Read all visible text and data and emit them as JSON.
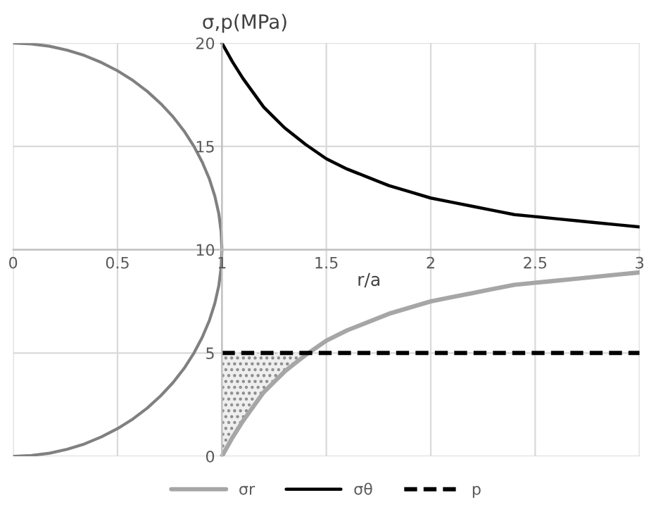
{
  "chart_data": {
    "type": "line",
    "xlabel": "r/a",
    "ylabel": "σ,p(MPa)",
    "xlim": [
      0,
      3
    ],
    "ylim": [
      0,
      20
    ],
    "xticks": [
      0,
      0.5,
      1,
      1.5,
      2,
      2.5,
      3
    ],
    "yticks": [
      0,
      5,
      10,
      15,
      20
    ],
    "grid": true,
    "legend": "bottom",
    "series": [
      {
        "name": "σr",
        "color": "#a6a6a6",
        "x": [
          1,
          1.05,
          1.1,
          1.15,
          1.2,
          1.25,
          1.3,
          1.35,
          1.4,
          1.5,
          1.6,
          1.7,
          1.8,
          1.9,
          2,
          2.1,
          2.2,
          2.3,
          2.4,
          2.5,
          2.6,
          2.7,
          2.8,
          2.9,
          3
        ],
        "values": [
          0,
          0.9,
          1.7,
          2.4,
          3.1,
          3.6,
          4.1,
          4.5,
          4.9,
          5.6,
          6.1,
          6.5,
          6.9,
          7.2,
          7.5,
          7.7,
          7.9,
          8.1,
          8.3,
          8.4,
          8.5,
          8.6,
          8.7,
          8.8,
          8.9
        ],
        "lower": [
          0,
          0.9,
          1.7,
          2.4,
          3.1,
          3.6,
          4.1,
          4.5,
          4.9,
          null,
          null,
          null,
          null,
          null,
          null,
          null,
          null,
          null,
          null,
          null,
          null,
          null,
          null,
          null,
          null
        ],
        "upper": [
          5,
          5,
          5,
          5,
          5,
          5,
          5,
          5,
          5,
          null,
          null,
          null,
          null,
          null,
          null,
          null,
          null,
          null,
          null,
          null,
          null,
          null,
          null,
          null,
          null
        ]
      },
      {
        "name": "σθ",
        "color": "#000000",
        "x": [
          1,
          1.05,
          1.1,
          1.15,
          1.2,
          1.25,
          1.3,
          1.35,
          1.4,
          1.5,
          1.6,
          1.7,
          1.8,
          1.9,
          2,
          2.1,
          2.2,
          2.3,
          2.4,
          2.5,
          2.6,
          2.7,
          2.8,
          2.9,
          3
        ],
        "values": [
          20,
          19.1,
          18.3,
          17.6,
          16.9,
          16.4,
          15.9,
          15.5,
          15.1,
          14.4,
          13.9,
          13.5,
          13.1,
          12.8,
          12.5,
          12.3,
          12.1,
          11.9,
          11.7,
          11.6,
          11.5,
          11.4,
          11.3,
          11.2,
          11.1
        ]
      },
      {
        "name": "p",
        "color": "#000000",
        "line_style": "dashed",
        "x": [
          1,
          3
        ],
        "values": [
          5,
          5
        ]
      },
      {
        "color": "#808080",
        "x": [
          0,
          0.087,
          0.174,
          0.259,
          0.342,
          0.423,
          0.5,
          0.574,
          0.643,
          0.707,
          0.766,
          0.819,
          0.866,
          0.906,
          0.94,
          0.966,
          0.985,
          0.996,
          1,
          0.996,
          0.985,
          0.966,
          0.94,
          0.906,
          0.866,
          0.819,
          0.766,
          0.707,
          0.643,
          0.574,
          0.5,
          0.423,
          0.342,
          0.259,
          0.174,
          0.087,
          0
        ],
        "values": [
          20,
          19.96,
          19.85,
          19.66,
          19.4,
          19.06,
          18.66,
          18.19,
          17.66,
          17.07,
          16.43,
          15.74,
          15,
          14.23,
          13.42,
          12.59,
          11.74,
          10.87,
          10,
          9.13,
          8.26,
          7.41,
          6.58,
          5.77,
          5,
          4.26,
          3.57,
          2.93,
          2.34,
          1.81,
          1.34,
          0.94,
          0.6,
          0.34,
          0.15,
          0.04,
          0
        ]
      }
    ]
  }
}
